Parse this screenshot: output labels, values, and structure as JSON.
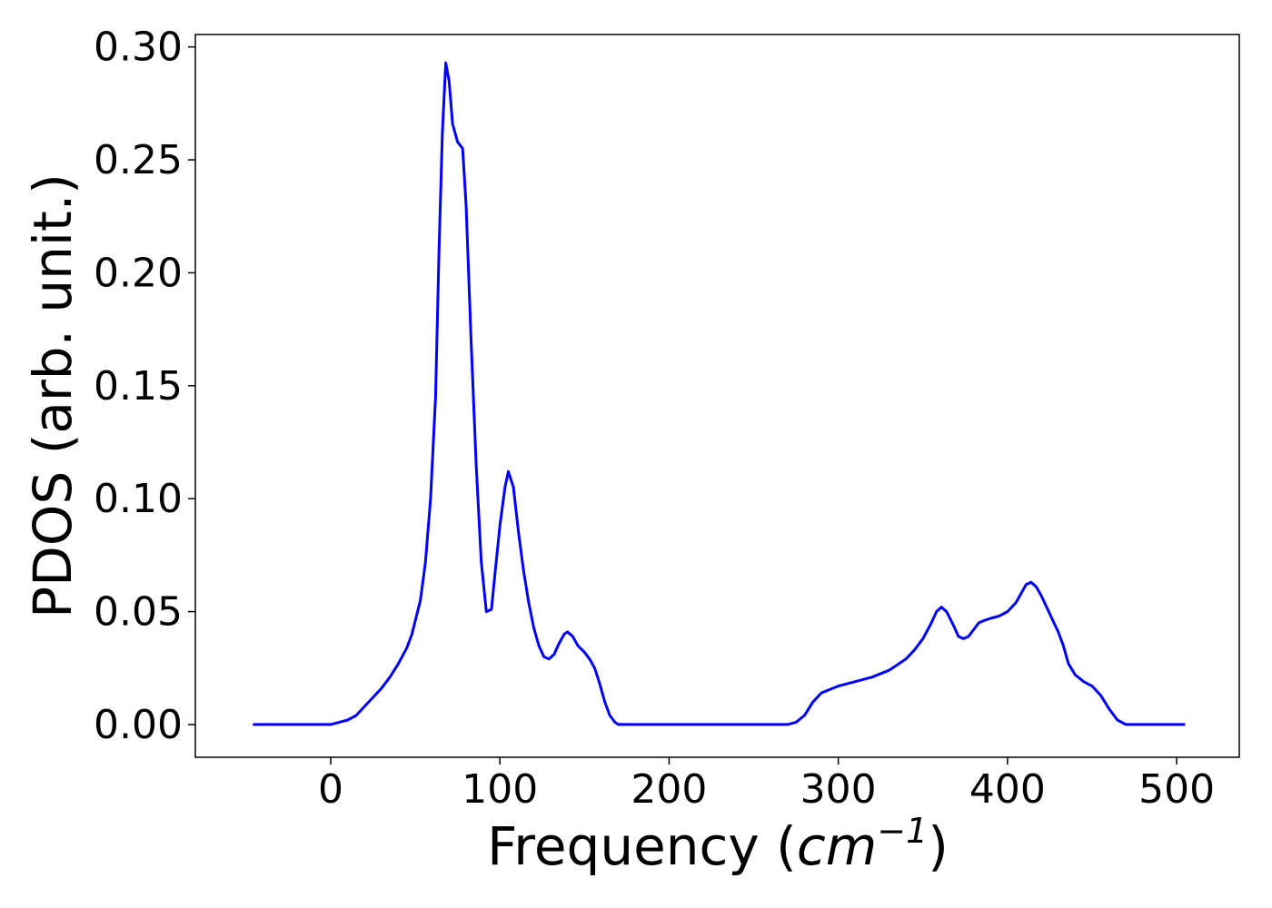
{
  "chart_data": {
    "type": "line",
    "title": "",
    "xlabel": "Frequency (",
    "xlabel_math": "cm",
    "xlabel_sup": "−1",
    "xlabel_end": ")",
    "ylabel": "PDOS (arb. unit.)",
    "xlim": [
      -80,
      537
    ],
    "ylim": [
      -0.0145,
      0.3055
    ],
    "xticks": [
      0,
      100,
      200,
      300,
      400,
      500
    ],
    "xtick_labels": [
      "0",
      "100",
      "200",
      "300",
      "400",
      "500"
    ],
    "yticks": [
      0.0,
      0.05,
      0.1,
      0.15,
      0.2,
      0.25,
      0.3
    ],
    "ytick_labels": [
      "0.00",
      "0.05",
      "0.10",
      "0.15",
      "0.20",
      "0.25",
      "0.30"
    ],
    "grid": false,
    "series": [
      {
        "color": "#0000ff",
        "x": [
          -46,
          -20,
          0,
          5,
          10,
          15,
          20,
          25,
          30,
          35,
          40,
          45,
          48,
          50,
          53,
          56,
          59,
          62,
          64,
          66,
          68,
          70,
          72,
          75,
          78,
          80,
          83,
          86,
          89,
          92,
          95,
          97,
          100,
          103,
          105,
          108,
          111,
          114,
          117,
          120,
          123,
          126,
          129,
          132,
          135,
          138,
          140,
          143,
          146,
          150,
          153,
          156,
          159,
          162,
          165,
          168,
          170,
          175,
          185,
          200,
          250,
          270,
          275,
          280,
          285,
          290,
          300,
          310,
          320,
          330,
          340,
          345,
          350,
          355,
          358,
          361,
          364,
          368,
          371,
          374,
          377,
          380,
          383,
          386,
          390,
          395,
          400,
          405,
          408,
          411,
          414,
          417,
          420,
          425,
          430,
          433,
          436,
          440,
          445,
          450,
          455,
          460,
          465,
          470,
          475,
          480,
          490,
          505
        ],
        "y": [
          0.0,
          0.0,
          0.0,
          0.001,
          0.002,
          0.004,
          0.008,
          0.012,
          0.016,
          0.021,
          0.027,
          0.034,
          0.04,
          0.046,
          0.055,
          0.072,
          0.1,
          0.145,
          0.21,
          0.262,
          0.293,
          0.285,
          0.266,
          0.258,
          0.255,
          0.23,
          0.17,
          0.115,
          0.072,
          0.05,
          0.051,
          0.066,
          0.088,
          0.105,
          0.112,
          0.105,
          0.085,
          0.068,
          0.054,
          0.043,
          0.035,
          0.03,
          0.029,
          0.031,
          0.036,
          0.04,
          0.041,
          0.039,
          0.035,
          0.032,
          0.029,
          0.025,
          0.018,
          0.01,
          0.004,
          0.001,
          0.0,
          0.0,
          0.0,
          0.0,
          0.0,
          0.0,
          0.001,
          0.004,
          0.01,
          0.014,
          0.017,
          0.019,
          0.021,
          0.024,
          0.029,
          0.033,
          0.038,
          0.045,
          0.05,
          0.052,
          0.05,
          0.044,
          0.039,
          0.038,
          0.039,
          0.042,
          0.045,
          0.046,
          0.047,
          0.048,
          0.05,
          0.054,
          0.058,
          0.062,
          0.063,
          0.061,
          0.057,
          0.049,
          0.041,
          0.035,
          0.027,
          0.022,
          0.019,
          0.017,
          0.013,
          0.007,
          0.002,
          0.0,
          0.0,
          0.0,
          0.0,
          0.0
        ]
      }
    ]
  }
}
